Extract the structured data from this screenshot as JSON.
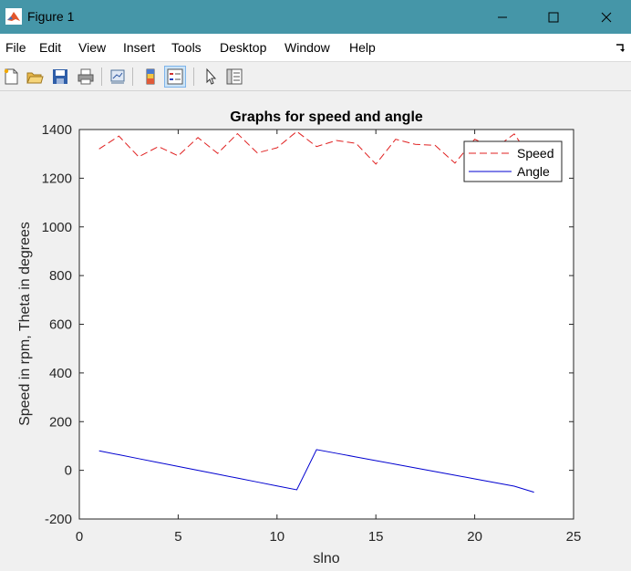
{
  "window": {
    "title": "Figure 1"
  },
  "menu": [
    "File",
    "Edit",
    "View",
    "Insert",
    "Tools",
    "Desktop",
    "Window",
    "Help"
  ],
  "toolbar": [
    {
      "name": "new-figure-icon"
    },
    {
      "name": "open-file-icon"
    },
    {
      "name": "save-icon"
    },
    {
      "name": "print-icon"
    },
    {
      "name": "link-plot-icon"
    },
    {
      "name": "insert-colorbar-icon"
    },
    {
      "name": "insert-legend-icon"
    },
    {
      "name": "pointer-icon"
    },
    {
      "name": "property-inspector-icon"
    }
  ],
  "colors": {
    "speed": "#e02020",
    "angle": "#0000d0",
    "titlebar": "#4596a8"
  },
  "chart_data": {
    "type": "line",
    "title": "Graphs for speed and angle",
    "xlabel": "slno",
    "ylabel": "Speed in rpm, Theta in degrees",
    "xlim": [
      0,
      25
    ],
    "ylim": [
      -200,
      1400
    ],
    "xticks": [
      0,
      5,
      10,
      15,
      20,
      25
    ],
    "yticks": [
      -200,
      0,
      200,
      400,
      600,
      800,
      1000,
      1200,
      1400
    ],
    "legend_position": "top-right",
    "series": [
      {
        "name": "Speed",
        "style": "dashed",
        "x": [
          1,
          2,
          3,
          4,
          5,
          6,
          7,
          8,
          9,
          10,
          11,
          12,
          13,
          14,
          15,
          16,
          17,
          18,
          19,
          20,
          21,
          22,
          23
        ],
        "values": [
          1320,
          1373,
          1288,
          1330,
          1292,
          1367,
          1302,
          1383,
          1304,
          1325,
          1392,
          1330,
          1355,
          1343,
          1258,
          1360,
          1339,
          1335,
          1262,
          1360,
          1322,
          1382,
          1262
        ]
      },
      {
        "name": "Angle",
        "style": "solid",
        "x": [
          1,
          2,
          3,
          4,
          5,
          6,
          7,
          8,
          9,
          10,
          11,
          12,
          13,
          14,
          15,
          16,
          17,
          18,
          19,
          20,
          21,
          22,
          23
        ],
        "values": [
          80,
          64,
          48,
          32,
          16,
          0,
          -16,
          -32,
          -48,
          -64,
          -80,
          85,
          70,
          55,
          40,
          25,
          10,
          -5,
          -20,
          -35,
          -50,
          -65,
          -90
        ]
      }
    ]
  }
}
